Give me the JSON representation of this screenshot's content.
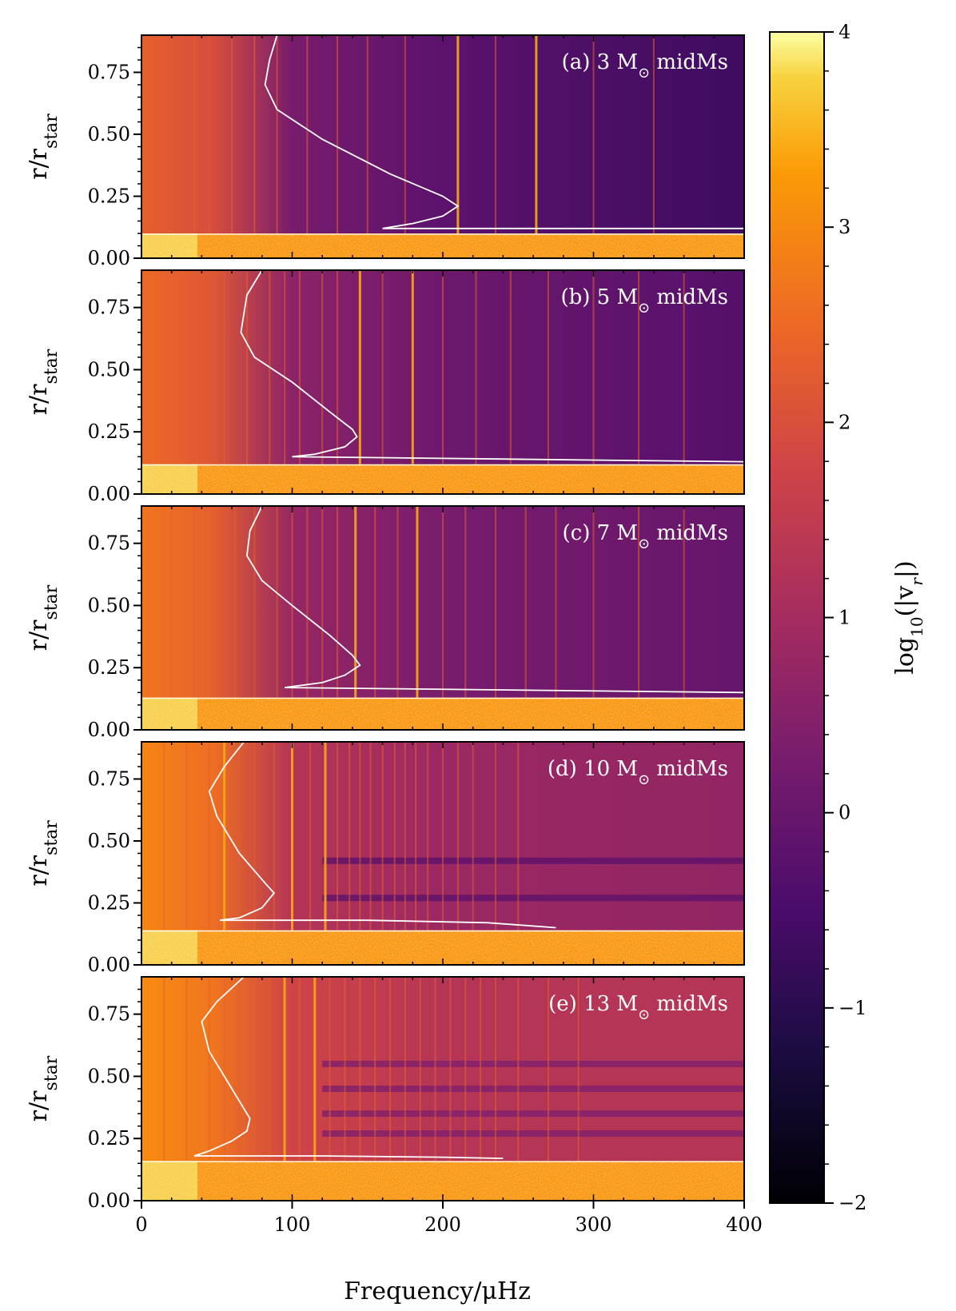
{
  "chart_data": {
    "type": "heatmap",
    "xlabel": "Frequency/μHz",
    "ylabel_base": "r/r",
    "ylabel_sub": "star",
    "xlim": [
      0,
      400
    ],
    "ylim": [
      0,
      0.9
    ],
    "x_ticks": [
      0,
      100,
      200,
      300,
      400
    ],
    "x_tick_labels": [
      "0",
      "100",
      "200",
      "300",
      "400"
    ],
    "y_ticks": [
      0.0,
      0.25,
      0.5,
      0.75
    ],
    "y_tick_labels": [
      "0.00",
      "0.25",
      "0.50",
      "0.75"
    ],
    "colorbar": {
      "label_prefix": "log",
      "label_sub": "10",
      "label_suffix": "(|v",
      "label_var_sub": "r",
      "label_end": "|)",
      "range": [
        -2,
        4
      ],
      "ticks": [
        -2,
        -1,
        0,
        1,
        2,
        3,
        4
      ],
      "tick_labels": [
        "−2",
        "−1",
        "0",
        "1",
        "2",
        "3",
        "4"
      ],
      "colormap": "inferno"
    },
    "panels": [
      {
        "label_prefix": "(a) 3 M",
        "label_suffix": " midMs",
        "core_boundary": 0.1,
        "peak_freqs": [
          20,
          35,
          45,
          60,
          75,
          90,
          110,
          130,
          150,
          175,
          210,
          235,
          262,
          300,
          340
        ],
        "bright_lines": [
          210,
          262
        ],
        "curve": [
          [
            90,
            0.9
          ],
          [
            85,
            0.8
          ],
          [
            82,
            0.7
          ],
          [
            90,
            0.6
          ],
          [
            120,
            0.48
          ],
          [
            165,
            0.34
          ],
          [
            200,
            0.25
          ],
          [
            210,
            0.21
          ],
          [
            200,
            0.17
          ],
          [
            180,
            0.14
          ],
          [
            160,
            0.12
          ],
          [
            400,
            0.12
          ]
        ]
      },
      {
        "label_prefix": "(b) 5 M",
        "label_suffix": " midMs",
        "core_boundary": 0.12,
        "peak_freqs": [
          25,
          40,
          55,
          70,
          85,
          95,
          105,
          120,
          130,
          145,
          160,
          180,
          200,
          222,
          245,
          270,
          300,
          330,
          360
        ],
        "bright_lines": [
          145,
          180
        ],
        "curve": [
          [
            80,
            0.9
          ],
          [
            70,
            0.8
          ],
          [
            66,
            0.65
          ],
          [
            75,
            0.55
          ],
          [
            100,
            0.45
          ],
          [
            125,
            0.33
          ],
          [
            140,
            0.26
          ],
          [
            143,
            0.23
          ],
          [
            135,
            0.19
          ],
          [
            115,
            0.16
          ],
          [
            100,
            0.15
          ],
          [
            400,
            0.13
          ]
        ]
      },
      {
        "label_prefix": "(c) 7 M",
        "label_suffix": " midMs",
        "core_boundary": 0.13,
        "peak_freqs": [
          20,
          35,
          50,
          62,
          75,
          90,
          100,
          110,
          120,
          130,
          142,
          155,
          170,
          183,
          200,
          215,
          235,
          255,
          275,
          300,
          330,
          360
        ],
        "bright_lines": [
          142,
          183
        ],
        "curve": [
          [
            80,
            0.9
          ],
          [
            72,
            0.8
          ],
          [
            70,
            0.7
          ],
          [
            80,
            0.6
          ],
          [
            100,
            0.5
          ],
          [
            125,
            0.38
          ],
          [
            140,
            0.3
          ],
          [
            145,
            0.26
          ],
          [
            135,
            0.22
          ],
          [
            120,
            0.19
          ],
          [
            95,
            0.17
          ],
          [
            400,
            0.15
          ]
        ]
      },
      {
        "label_prefix": "(d) 10 M",
        "label_suffix": " midMs",
        "core_boundary": 0.14,
        "peak_freqs": [
          15,
          30,
          45,
          55,
          65,
          75,
          88,
          100,
          112,
          122,
          130,
          138,
          145,
          152,
          160,
          168,
          175,
          182,
          190,
          200,
          210,
          220,
          235,
          250
        ],
        "bright_lines": [
          55,
          100,
          122
        ],
        "curve": [
          [
            68,
            0.9
          ],
          [
            55,
            0.8
          ],
          [
            45,
            0.7
          ],
          [
            50,
            0.6
          ],
          [
            65,
            0.45
          ],
          [
            82,
            0.33
          ],
          [
            88,
            0.29
          ],
          [
            80,
            0.23
          ],
          [
            65,
            0.19
          ],
          [
            52,
            0.18
          ],
          [
            150,
            0.18
          ],
          [
            230,
            0.17
          ],
          [
            275,
            0.15
          ]
        ]
      },
      {
        "label_prefix": "(e) 13 M",
        "label_suffix": " midMs",
        "core_boundary": 0.16,
        "peak_freqs": [
          15,
          30,
          45,
          55,
          65,
          75,
          85,
          95,
          105,
          115,
          125,
          135,
          145,
          155,
          165,
          175,
          185,
          195,
          205,
          215,
          225,
          235,
          250,
          270,
          290
        ],
        "bright_lines": [
          95,
          115
        ],
        "curve": [
          [
            68,
            0.9
          ],
          [
            50,
            0.8
          ],
          [
            40,
            0.72
          ],
          [
            45,
            0.6
          ],
          [
            60,
            0.45
          ],
          [
            72,
            0.33
          ],
          [
            70,
            0.28
          ],
          [
            60,
            0.24
          ],
          [
            45,
            0.2
          ],
          [
            35,
            0.18
          ],
          [
            120,
            0.18
          ],
          [
            200,
            0.175
          ],
          [
            240,
            0.17
          ]
        ]
      }
    ]
  }
}
